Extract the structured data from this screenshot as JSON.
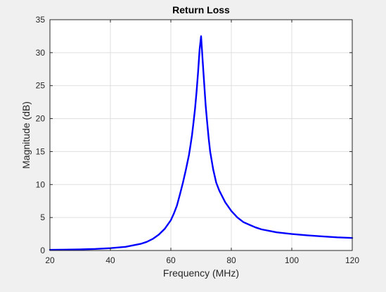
{
  "chart_data": {
    "type": "line",
    "title": "Return Loss",
    "xlabel": "Frequency (MHz)",
    "ylabel": "Magnitude (dB)",
    "xlim": [
      20,
      120
    ],
    "ylim": [
      0,
      35
    ],
    "xticks": [
      20,
      40,
      60,
      80,
      100,
      120
    ],
    "yticks": [
      0,
      5,
      10,
      15,
      20,
      25,
      30,
      35
    ],
    "xtick_labels": [
      "20",
      "40",
      "60",
      "80",
      "100",
      "120"
    ],
    "ytick_labels": [
      "0",
      "5",
      "10",
      "15",
      "20",
      "25",
      "30",
      "35"
    ],
    "grid": true,
    "legend": "none",
    "series": [
      {
        "color": "#0000ff",
        "x": [
          20,
          25,
          30,
          35,
          40,
          45,
          50,
          52,
          54,
          56,
          58,
          60,
          61,
          62,
          63,
          64,
          65,
          66,
          66.5,
          67,
          67.5,
          68,
          68.5,
          69,
          69.5,
          70,
          70.5,
          71,
          71.5,
          72,
          72.5,
          73,
          74,
          75,
          76,
          77,
          78,
          80,
          82,
          84,
          86,
          88,
          90,
          95,
          100,
          105,
          110,
          115,
          120
        ],
        "y": [
          0.1,
          0.13,
          0.17,
          0.24,
          0.35,
          0.55,
          1.0,
          1.3,
          1.75,
          2.4,
          3.3,
          4.6,
          5.6,
          6.8,
          8.5,
          10.3,
          12.3,
          14.5,
          16.0,
          17.5,
          19.5,
          21.5,
          24.0,
          27.0,
          30.5,
          32.5,
          29.0,
          25.5,
          22.0,
          19.5,
          17.0,
          15.0,
          12.3,
          10.3,
          9.1,
          8.2,
          7.3,
          6.0,
          5.0,
          4.3,
          3.9,
          3.5,
          3.2,
          2.75,
          2.5,
          2.3,
          2.15,
          2.0,
          1.9
        ]
      }
    ]
  }
}
